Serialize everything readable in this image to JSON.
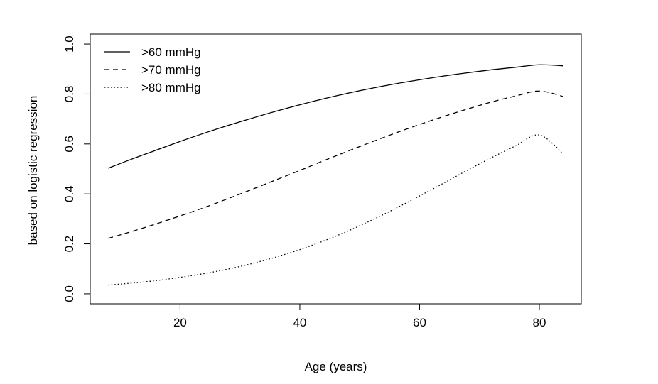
{
  "chart_data": {
    "type": "line",
    "xlabel": "Age (years)",
    "ylabel": "based on logistic regression",
    "xlim": [
      5,
      87
    ],
    "ylim": [
      -0.04,
      1.04
    ],
    "xticks": [
      20,
      40,
      60,
      80
    ],
    "yticks": [
      0.0,
      0.2,
      0.4,
      0.6,
      0.8,
      1.0
    ],
    "xtick_labels": [
      "20",
      "40",
      "60",
      "80"
    ],
    "ytick_labels": [
      "0.0",
      "0.2",
      "0.4",
      "0.6",
      "0.8",
      "1.0"
    ],
    "grid": false,
    "legend_position": "top-left",
    "x": [
      8,
      12,
      16,
      20,
      24,
      28,
      32,
      36,
      40,
      44,
      48,
      52,
      56,
      60,
      64,
      68,
      72,
      76,
      80,
      84
    ],
    "series": [
      {
        "name": ">60 mmHg",
        "line_style": "solid",
        "values": [
          0.503,
          0.54,
          0.575,
          0.61,
          0.643,
          0.674,
          0.703,
          0.731,
          0.757,
          0.781,
          0.803,
          0.823,
          0.841,
          0.857,
          0.872,
          0.885,
          0.897,
          0.907,
          0.917,
          0.913
        ]
      },
      {
        "name": ">70 mmHg",
        "line_style": "dashed",
        "values": [
          0.222,
          0.25,
          0.28,
          0.312,
          0.345,
          0.381,
          0.418,
          0.456,
          0.494,
          0.533,
          0.571,
          0.608,
          0.644,
          0.678,
          0.71,
          0.74,
          0.768,
          0.792,
          0.812,
          0.79
        ]
      },
      {
        "name": ">80 mmHg",
        "line_style": "dotted",
        "values": [
          0.035,
          0.043,
          0.053,
          0.066,
          0.081,
          0.099,
          0.121,
          0.147,
          0.177,
          0.212,
          0.251,
          0.295,
          0.342,
          0.392,
          0.443,
          0.495,
          0.545,
          0.592,
          0.636,
          0.56
        ]
      }
    ]
  }
}
